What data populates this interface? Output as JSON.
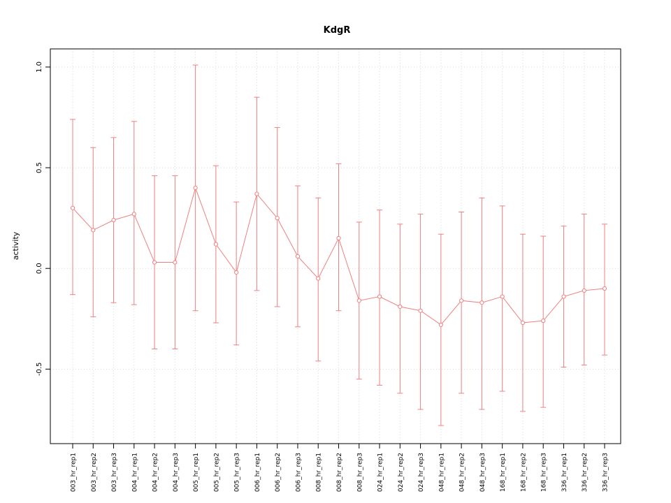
{
  "chart_data": {
    "type": "line",
    "title": "KdgR",
    "xlabel": "",
    "ylabel": "activity",
    "ylim": [
      -0.87,
      1.09
    ],
    "yticks": [
      -0.5,
      0.0,
      0.5,
      1.0
    ],
    "ytick_labels": [
      "-0.5",
      "0.0",
      "0.5",
      "1.0"
    ],
    "grid": "dotted",
    "legend": "none",
    "series_color": "#f08080",
    "grid_color": "#d9d9d9",
    "border_color": "#000000",
    "categories": [
      "003_hr_rep1",
      "003_hr_rep2",
      "003_hr_rep3",
      "004_hr_rep1",
      "004_hr_rep2",
      "004_hr_rep3",
      "005_hr_rep1",
      "005_hr_rep2",
      "005_hr_rep3",
      "006_hr_rep1",
      "006_hr_rep2",
      "006_hr_rep3",
      "008_hr_rep1",
      "008_hr_rep2",
      "008_hr_rep3",
      "024_hr_rep1",
      "024_hr_rep2",
      "024_hr_rep3",
      "048_hr_rep1",
      "048_hr_rep2",
      "048_hr_rep3",
      "168_hr_rep1",
      "168_hr_rep2",
      "168_hr_rep3",
      "336_hr_rep1",
      "336_hr_rep2",
      "336_hr_rep3"
    ],
    "values": [
      0.3,
      0.19,
      0.24,
      0.27,
      0.03,
      0.03,
      0.4,
      0.12,
      -0.02,
      0.37,
      0.25,
      0.06,
      -0.05,
      0.15,
      -0.16,
      -0.14,
      -0.19,
      -0.21,
      -0.28,
      -0.16,
      -0.17,
      -0.14,
      -0.27,
      -0.26,
      -0.14,
      -0.11,
      -0.1
    ],
    "error_upper": [
      0.74,
      0.6,
      0.65,
      0.73,
      0.46,
      0.46,
      1.01,
      0.51,
      0.33,
      0.85,
      0.7,
      0.41,
      0.35,
      0.52,
      0.23,
      0.29,
      0.22,
      0.27,
      0.17,
      0.28,
      0.35,
      0.31,
      0.17,
      0.16,
      0.21,
      0.27,
      0.22
    ],
    "error_lower": [
      -0.13,
      -0.24,
      -0.17,
      -0.18,
      -0.4,
      -0.4,
      -0.21,
      -0.27,
      -0.38,
      -0.11,
      -0.19,
      -0.29,
      -0.46,
      -0.21,
      -0.55,
      -0.58,
      -0.62,
      -0.7,
      -0.78,
      -0.62,
      -0.7,
      -0.61,
      -0.71,
      -0.69,
      -0.49,
      -0.48,
      -0.43
    ]
  }
}
